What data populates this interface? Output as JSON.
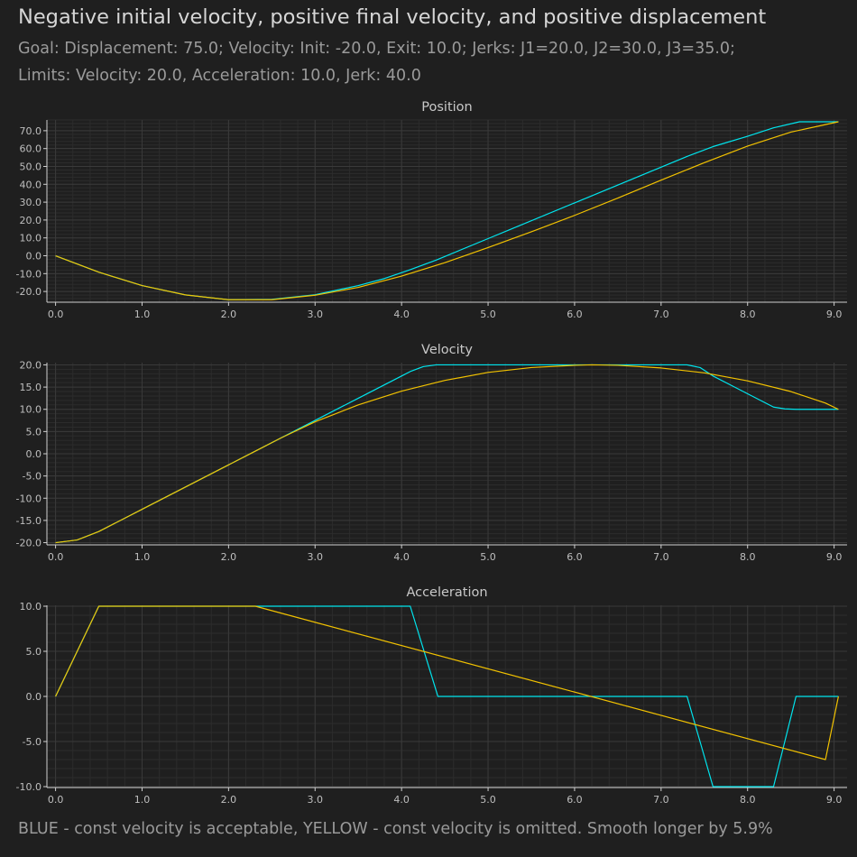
{
  "title": "Negative initial velocity, positive final velocity, and positive displacement",
  "subtitle_line1": "Goal: Displacement: 75.0; Velocity: Init: -20.0, Exit: 10.0; Jerks: J1=20.0, J2=30.0, J3=35.0;",
  "subtitle_line2": "Limits: Velocity: 20.0, Acceleration: 10.0, Jerk: 40.0",
  "footer": "BLUE - const velocity is acceptable, YELLOW - const velocity is omitted. Smooth longer by 5.9%",
  "colors": {
    "background": "#1f1f1f",
    "blue_series": "#00e5ee",
    "yellow_series": "#f2c200",
    "grid": "#3a3a3a",
    "axis": "#cfcfcf"
  },
  "chart_data": [
    {
      "type": "line",
      "title": "Position",
      "xlim": [
        -0.1,
        9.15
      ],
      "ylim": [
        -26,
        76
      ],
      "xticks": [
        0.0,
        1.0,
        2.0,
        3.0,
        4.0,
        5.0,
        6.0,
        7.0,
        8.0,
        9.0
      ],
      "xtick_labels": [
        "0.0",
        "1.0",
        "2.0",
        "3.0",
        "4.0",
        "5.0",
        "6.0",
        "7.0",
        "8.0",
        "9.0"
      ],
      "yticks": [
        -20,
        -10,
        0,
        10,
        20,
        30,
        40,
        50,
        60,
        70
      ],
      "ytick_labels": [
        "-20.0",
        "-10.0",
        "0.0",
        "10.0",
        "20.0",
        "30.0",
        "40.0",
        "50.0",
        "60.0",
        "70.0"
      ],
      "grid": true,
      "series": [
        {
          "color": "blue",
          "x": [
            0,
            0.5,
            1.0,
            1.5,
            2.0,
            2.5,
            3.0,
            3.5,
            3.8,
            4.1,
            4.4,
            5.0,
            6.0,
            7.0,
            7.3,
            7.6,
            8.0,
            8.3,
            8.6,
            9.05
          ],
          "y": [
            0,
            -9.2,
            -16.7,
            -21.9,
            -24.6,
            -24.4,
            -21.8,
            -16.7,
            -12.8,
            -7.8,
            -2.4,
            9.6,
            29.6,
            49.6,
            55.6,
            61.1,
            66.9,
            71.6,
            75.0,
            75.0
          ]
        },
        {
          "color": "yellow",
          "x": [
            0,
            0.5,
            1.0,
            1.5,
            2.0,
            2.5,
            3.0,
            3.5,
            4.0,
            4.5,
            5.0,
            5.5,
            6.0,
            6.5,
            7.0,
            7.5,
            8.0,
            8.5,
            9.05
          ],
          "y": [
            0,
            -9.2,
            -16.7,
            -21.9,
            -24.6,
            -24.6,
            -22.1,
            -17.7,
            -11.4,
            -3.9,
            4.6,
            13.4,
            22.6,
            32.3,
            42.3,
            52.1,
            61.4,
            69.2,
            75.0
          ]
        }
      ]
    },
    {
      "type": "line",
      "title": "Velocity",
      "xlim": [
        -0.1,
        9.15
      ],
      "ylim": [
        -20.5,
        20.5
      ],
      "xticks": [
        0.0,
        1.0,
        2.0,
        3.0,
        4.0,
        5.0,
        6.0,
        7.0,
        8.0,
        9.0
      ],
      "xtick_labels": [
        "0.0",
        "1.0",
        "2.0",
        "3.0",
        "4.0",
        "5.0",
        "6.0",
        "7.0",
        "8.0",
        "9.0"
      ],
      "yticks": [
        -20,
        -15,
        -10,
        -5,
        0,
        5,
        10,
        15,
        20
      ],
      "ytick_labels": [
        "-20.0",
        "-15.0",
        "-10.0",
        "-5.0",
        "0.0",
        "5.0",
        "10.0",
        "15.0",
        "20.0"
      ],
      "grid": true,
      "series": [
        {
          "color": "blue",
          "x": [
            0,
            0.25,
            0.5,
            1.0,
            1.5,
            2.0,
            2.5,
            3.0,
            3.5,
            4.0,
            4.1,
            4.25,
            4.4,
            5.0,
            6.0,
            7.0,
            7.3,
            7.45,
            7.6,
            7.8,
            8.0,
            8.3,
            8.43,
            8.56,
            9.05
          ],
          "y": [
            -20,
            -19.4,
            -17.5,
            -12.5,
            -7.5,
            -2.5,
            2.5,
            7.5,
            12.5,
            17.5,
            18.5,
            19.6,
            20.0,
            20.0,
            20.0,
            20.0,
            20.0,
            19.4,
            17.5,
            15.5,
            13.5,
            10.5,
            10.1,
            10.0,
            10.0
          ]
        },
        {
          "color": "yellow",
          "x": [
            0,
            0.25,
            0.5,
            1.0,
            1.5,
            2.0,
            2.31,
            2.6,
            3.0,
            3.5,
            4.0,
            4.5,
            5.0,
            5.5,
            6.0,
            6.2,
            6.5,
            7.0,
            7.5,
            8.0,
            8.5,
            8.9,
            9.05
          ],
          "y": [
            -20,
            -19.4,
            -17.5,
            -12.5,
            -7.5,
            -2.5,
            0.6,
            3.5,
            7.2,
            11.0,
            14.1,
            16.5,
            18.3,
            19.4,
            19.9,
            20.0,
            19.9,
            19.3,
            18.2,
            16.4,
            14.0,
            11.4,
            10.0
          ]
        }
      ]
    },
    {
      "type": "line",
      "title": "Acceleration",
      "xlim": [
        -0.1,
        9.15
      ],
      "ylim": [
        -10.1,
        10.1
      ],
      "xticks": [
        0.0,
        1.0,
        2.0,
        3.0,
        4.0,
        5.0,
        6.0,
        7.0,
        8.0,
        9.0
      ],
      "xtick_labels": [
        "0.0",
        "1.0",
        "2.0",
        "3.0",
        "4.0",
        "5.0",
        "6.0",
        "7.0",
        "8.0",
        "9.0"
      ],
      "yticks": [
        -10,
        -5,
        0,
        5,
        10
      ],
      "ytick_labels": [
        "-10.0",
        "-5.0",
        "0.0",
        "5.0",
        "10.0"
      ],
      "grid": true,
      "series": [
        {
          "color": "blue",
          "x": [
            0,
            0.5,
            4.1,
            4.42,
            7.3,
            7.6,
            8.3,
            8.56,
            9.05
          ],
          "y": [
            0,
            10,
            10,
            0,
            0,
            -10,
            -10,
            0,
            0
          ]
        },
        {
          "color": "yellow",
          "x": [
            0,
            0.5,
            2.31,
            8.9,
            9.05
          ],
          "y": [
            0,
            10,
            10,
            -7.0,
            0
          ]
        }
      ]
    }
  ]
}
